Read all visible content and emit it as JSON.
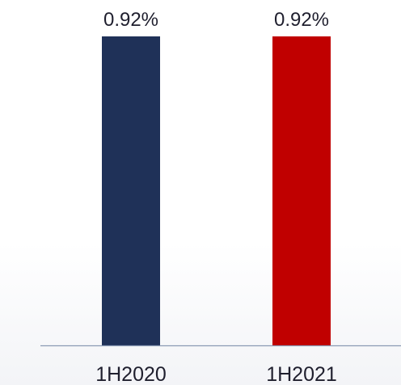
{
  "chart_data": {
    "type": "bar",
    "categories": [
      "1H2020",
      "1H2021"
    ],
    "values": [
      0.92,
      0.92
    ],
    "data_labels": [
      "0.92%",
      "0.92%"
    ],
    "colors": [
      "#1f3158",
      "#c00000"
    ],
    "axis_color": "#8a9ab5",
    "ylim": [
      0,
      0.92
    ],
    "grid": false,
    "legend": "none",
    "title": "",
    "xlabel": "",
    "ylabel": ""
  }
}
